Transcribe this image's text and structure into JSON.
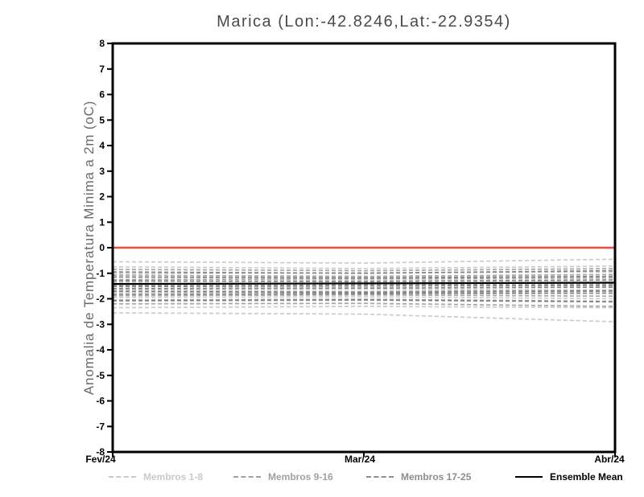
{
  "chart_data": {
    "type": "line",
    "title": "Marica (Lon:-42.8246,Lat:-22.9354)",
    "ylabel": "Anomalia de Temperatura Minima a 2m (oC)",
    "xlabel": "",
    "ylim": [
      -8,
      8
    ],
    "grid": false,
    "yticks": [
      8,
      7,
      6,
      5,
      4,
      3,
      2,
      1,
      0,
      -1,
      -2,
      -3,
      -4,
      -5,
      -6,
      -7,
      -8
    ],
    "xticks": [
      {
        "pos": 0.0,
        "label": "Fev/24"
      },
      {
        "pos": 0.5,
        "label": "Mar/24"
      },
      {
        "pos": 1.0,
        "label": "Abr/24"
      }
    ],
    "zero_line": {
      "value": 0,
      "color": "#f2493f"
    },
    "frame_color": "#000000",
    "mean_color": "#000000",
    "groups": [
      {
        "name": "Membros 1-8",
        "color": "#cbcbcb"
      },
      {
        "name": "Membros 9-16",
        "color": "#a5a5a5"
      },
      {
        "name": "Membros 17-25",
        "color": "#828282"
      }
    ],
    "x": [
      0,
      0.5,
      1
    ],
    "series": [
      {
        "name": "Membro 1",
        "group": 0,
        "values": [
          -0.55,
          -0.6,
          -0.45
        ]
      },
      {
        "name": "Membro 2",
        "group": 0,
        "values": [
          -0.75,
          -0.82,
          -0.72
        ]
      },
      {
        "name": "Membro 3",
        "group": 0,
        "values": [
          -1.02,
          -0.98,
          -0.95
        ]
      },
      {
        "name": "Membro 4",
        "group": 0,
        "values": [
          -1.32,
          -1.28,
          -1.25
        ]
      },
      {
        "name": "Membro 5",
        "group": 0,
        "values": [
          -1.65,
          -1.62,
          -1.68
        ]
      },
      {
        "name": "Membro 6",
        "group": 0,
        "values": [
          -1.95,
          -1.92,
          -2.0
        ]
      },
      {
        "name": "Membro 7",
        "group": 0,
        "values": [
          -2.35,
          -2.3,
          -2.35
        ]
      },
      {
        "name": "Membro 8",
        "group": 0,
        "values": [
          -2.55,
          -2.6,
          -2.9
        ]
      },
      {
        "name": "Membro 9",
        "group": 1,
        "values": [
          -0.85,
          -0.9,
          -0.82
        ]
      },
      {
        "name": "Membro 10",
        "group": 1,
        "values": [
          -1.08,
          -1.12,
          -1.05
        ]
      },
      {
        "name": "Membro 11",
        "group": 1,
        "values": [
          -1.25,
          -1.22,
          -1.18
        ]
      },
      {
        "name": "Membro 12",
        "group": 1,
        "values": [
          -1.48,
          -1.45,
          -1.42
        ]
      },
      {
        "name": "Membro 13",
        "group": 1,
        "values": [
          -1.7,
          -1.72,
          -1.66
        ]
      },
      {
        "name": "Membro 14",
        "group": 1,
        "values": [
          -1.88,
          -1.85,
          -1.9
        ]
      },
      {
        "name": "Membro 15",
        "group": 1,
        "values": [
          -2.05,
          -2.02,
          -2.1
        ]
      },
      {
        "name": "Membro 16",
        "group": 1,
        "values": [
          -2.2,
          -2.18,
          -2.3
        ]
      },
      {
        "name": "Membro 17",
        "group": 2,
        "values": [
          -0.95,
          -1.0,
          -0.9
        ]
      },
      {
        "name": "Membro 18",
        "group": 2,
        "values": [
          -1.15,
          -1.18,
          -1.12
        ]
      },
      {
        "name": "Membro 19",
        "group": 2,
        "values": [
          -1.3,
          -1.33,
          -1.27
        ]
      },
      {
        "name": "Membro 20",
        "group": 2,
        "values": [
          -1.4,
          -1.42,
          -1.36
        ]
      },
      {
        "name": "Membro 21",
        "group": 2,
        "values": [
          -1.52,
          -1.5,
          -1.48
        ]
      },
      {
        "name": "Membro 22",
        "group": 2,
        "values": [
          -1.6,
          -1.58,
          -1.55
        ]
      },
      {
        "name": "Membro 23",
        "group": 2,
        "values": [
          -1.72,
          -1.75,
          -1.7
        ]
      },
      {
        "name": "Membro 24",
        "group": 2,
        "values": [
          -1.82,
          -1.8,
          -1.78
        ]
      },
      {
        "name": "Membro 25",
        "group": 2,
        "values": [
          -2.08,
          -2.05,
          -2.12
        ]
      },
      {
        "name": "Ensemble Mean",
        "group": "mean",
        "values": [
          -1.42,
          -1.4,
          -1.37
        ]
      }
    ],
    "legend": {
      "position": "bottom",
      "items": [
        {
          "label": "Membros 1-8",
          "color": "#c9c9c9",
          "style": "dashed"
        },
        {
          "label": "Membros 9-16",
          "color": "#a0a0a0",
          "style": "dashed"
        },
        {
          "label": "Membros 17-25",
          "color": "#8d8d8d",
          "style": "dashed"
        },
        {
          "label": "Ensemble Mean",
          "color": "#000000",
          "style": "solid"
        }
      ]
    }
  }
}
